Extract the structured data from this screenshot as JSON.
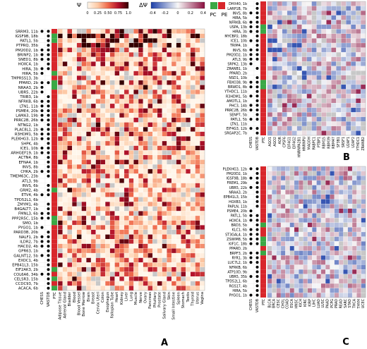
{
  "legend": {
    "psi_symbol": "Ψ",
    "psi_ticks": [
      "0",
      "0.25",
      "0.50",
      "0.75",
      "1.0"
    ],
    "dpsi_symbol": "ΔΨ",
    "dpsi_ticks": [
      "-0.4",
      "-0.2",
      "0",
      "0.2",
      "0.4"
    ],
    "class_labels": [
      "PC",
      "PE"
    ],
    "class_colors": {
      "PC": "#3aa845",
      "PE": "#d8262b"
    }
  },
  "panel_labels": [
    "A",
    "B",
    "C"
  ],
  "panel_a": {
    "rows": [
      "SRRM3, 11b",
      "IGSF9B, 18b",
      "PATL1, 5b",
      "PTPRQ, 35b",
      "PM20D2, 1b",
      "BRINP2, 1b",
      "SNED1, 8b",
      "HOXC4, 1b",
      "HIRA, 3b",
      "HIRA, 5b",
      "TMPRSS13, 3b",
      "PPARD, 2b",
      "NRAA3, 2b",
      "UBR5, 22b",
      "TRIB3, 1b",
      "NFRKB, 6b",
      "LTN1, 11b",
      "PSME4, 20b",
      "LAMA3, 19b",
      "PRRC2B, 26b",
      "NTNG2, 1b",
      "PLAC8L1, 2b",
      "R3HDM1, 5b",
      "PLEKHG3, 12b",
      "SHPK, 4b",
      "ICE1, 10b",
      "ARHGEF19, 1b",
      "ACTN4, 8b",
      "EFNA4, 1b",
      "INVS, 8b",
      "CHKA, 2b",
      "TMEM63C, 23b",
      "ATL3, 9b",
      "INVS, 6b",
      "GRM2, 4b",
      "ETV4, 4b",
      "TPD52L1, 6b",
      "ZMYM1, 4b",
      "B4GALT7, 1b",
      "FMNL3, 6b",
      "PPP2R5C, 15b",
      "SMO, 1b",
      "PYGO1, 1b",
      "PARD3B, 20b",
      "NALF1, 2b",
      "ILDR2, 7b",
      "HACD2, 4b",
      "GPR63, 1b",
      "GALNT12, 5b",
      "EXOC1, 4b",
      "EPB41L3, 15b",
      "EIF2AK3, 2b",
      "COL6A6, 34b",
      "CELSR3, 15b",
      "CCDC93, 7b",
      "ACACA, 6b"
    ],
    "columns": [
      "Adipose Tissue",
      "Adrenal Gland",
      "Bladder",
      "Blood",
      "Blood Vessel",
      "Bone Marrow",
      "Brain",
      "Breast",
      "Cervix Uteri",
      "Colon",
      "Esophagus",
      "Fallopian Tube",
      "Heart",
      "Kidney",
      "Liver",
      "Lung",
      "Muscle",
      "Nerve",
      "Ovary",
      "Pancreas",
      "Pituitary",
      "Prostate",
      "Salivary Gland",
      "Skin",
      "Small Intestine",
      "Spleen",
      "Stomach",
      "Testis",
      "Thyroid",
      "Uterus",
      "Vagina"
    ],
    "annotation_labels": [
      "CHESS",
      "VASTDB",
      "PTC"
    ]
  },
  "panel_b": {
    "rows": [
      "DHX40, 1b",
      "LARP1B, 7b",
      "INVS, 8b",
      "HIRA, 5b",
      "NFRKB, 6b",
      "USPA, 13b",
      "HIRA, 3b",
      "MYCBP2, 18b",
      "ICE1, 10b",
      "TRIM4, 1b",
      "INVS, 6b",
      "PM20D2, 1b",
      "ATL3, 9b",
      "SRPK2, 13b",
      "ZRANB1, 1b",
      "PPARD, 2b",
      "NSD1, 10b",
      "FBXO38, 9b",
      "BRWD1, 8b",
      "YTHDC1, 11b",
      "R3HDM1, 5b",
      "AMOTL1, 1b",
      "PHC3, 14b",
      "PRRC2B, 26b",
      "SENP7, 5b",
      "PATL1, 5b",
      "LTN1, 11b",
      "EIF4G3, 12b",
      "SRGAP2C, 7b"
    ],
    "columns": [
      "AGO1",
      "AGO2",
      "AQR",
      "CPSF6",
      "EIF4G1",
      "EIF4G2",
      "HNRNPA2B1",
      "HNRNPU",
      "MAGOH",
      "PABPC1",
      "PTBP1",
      "RBM15",
      "RBM39",
      "RBM47",
      "SF3B1",
      "SRSF1",
      "U2AF1",
      "U2AF2",
      "YTHDC1",
      "ZRANB2"
    ]
  },
  "panel_c": {
    "rows": [
      "PLEKHG3, 12b",
      "PM20D2, 1b",
      "IGSF9B, 18b",
      "FREM1, 29b",
      "UBR5, 22b",
      "NRAA3, 2b",
      "EPB41L3, 15b",
      "HOXB3, 1b",
      "PAPLN, 11b",
      "PSME4, 20b",
      "PATL1, 5b",
      "HOXC4, 1b",
      "BRD3, 5b",
      "KLC1, 6b",
      "ST3GAL4, 1b",
      "ZSWIM8, 5b",
      "KIF1C, 18b",
      "PPARD, 2b",
      "BRPF3, 2b",
      "RYR1, 3b",
      "LUC7L2, 1b",
      "NFRKB, 6b",
      "ATP10D, 9b",
      "UBR5, 35b",
      "TPD52L1, 6b",
      "RGS17, 4b",
      "HIRA, 5b",
      "PYGO1, 1b"
    ],
    "columns": [
      "BLCA",
      "BRCA",
      "CESC",
      "CHOL",
      "COAD",
      "ESCA",
      "HNSC",
      "KICH",
      "KIRC",
      "KIRP",
      "LIHC",
      "LUAD",
      "LUSC",
      "PAAD",
      "PCPG",
      "PRAD",
      "READ",
      "SARC",
      "STAD",
      "THCA",
      "THYM",
      "UCEC"
    ]
  },
  "colors": {
    "psi_low": "#fff7ec",
    "psi_high": "#330000",
    "dpsi_neg": "#1c3fa8",
    "dpsi_mid": "#f7f7f7",
    "dpsi_pos": "#8b0f3f",
    "missing": "#c8c8c8"
  }
}
